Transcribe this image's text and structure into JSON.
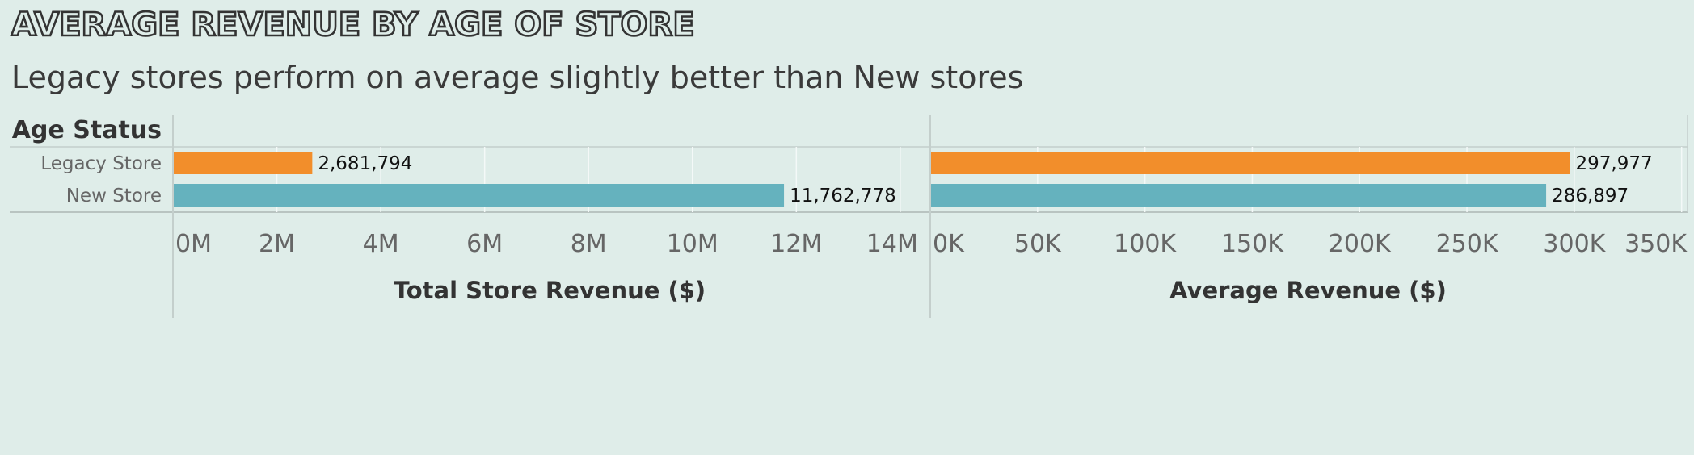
{
  "title": "Average Revenue by Age of Store",
  "subtitle": "Legacy stores perform on average slightly better than New stores",
  "row_header": "Age Status",
  "colors": {
    "legacy": "#f28e2b",
    "new": "#65b2be",
    "background": "#dfede9"
  },
  "chart_data": [
    {
      "type": "bar",
      "orientation": "horizontal",
      "categories": [
        "Legacy Store",
        "New Store"
      ],
      "values": [
        2681794,
        11762778
      ],
      "value_labels": [
        "2,681,794",
        "11,762,778"
      ],
      "xlabel": "Total Store Revenue ($)",
      "xlim": [
        0,
        14500000
      ],
      "ticks": [
        0,
        2000000,
        4000000,
        6000000,
        8000000,
        10000000,
        12000000,
        14000000
      ],
      "tick_labels": [
        "0M",
        "2M",
        "4M",
        "6M",
        "8M",
        "10M",
        "12M",
        "14M"
      ],
      "grid": true
    },
    {
      "type": "bar",
      "orientation": "horizontal",
      "categories": [
        "Legacy Store",
        "New Store"
      ],
      "values": [
        297977,
        286897
      ],
      "value_labels": [
        "297,977",
        "286,897"
      ],
      "xlabel": "Average Revenue ($)",
      "xlim": [
        0,
        352000
      ],
      "ticks": [
        0,
        50000,
        100000,
        150000,
        200000,
        250000,
        300000,
        350000
      ],
      "tick_labels": [
        "0K",
        "50K",
        "100K",
        "150K",
        "200K",
        "250K",
        "300K",
        "350K"
      ],
      "grid": true
    }
  ]
}
